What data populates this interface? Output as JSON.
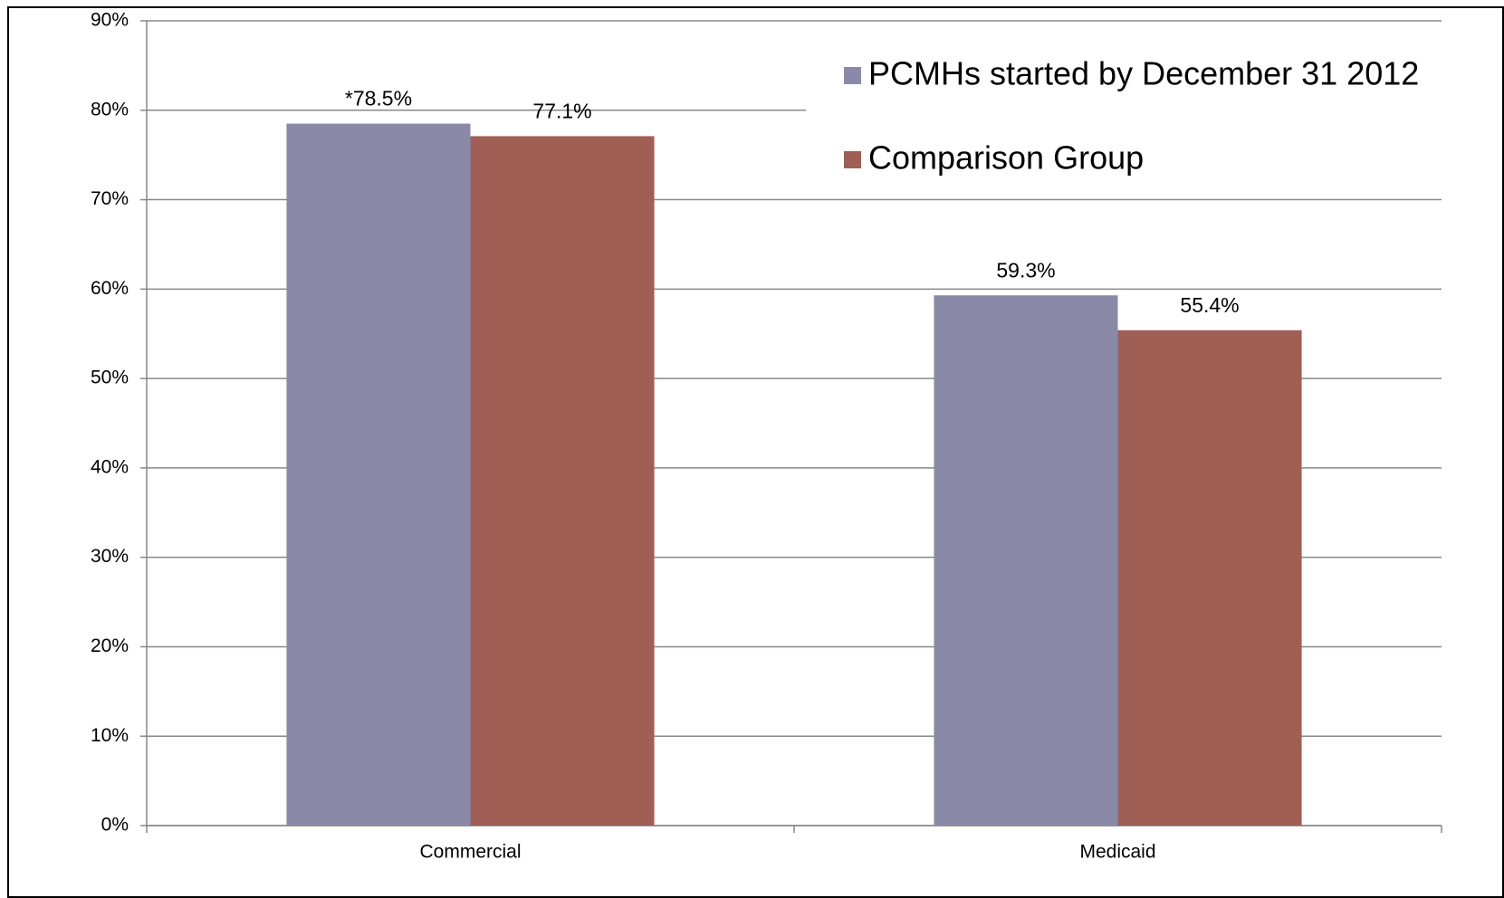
{
  "chart_data": {
    "type": "bar",
    "categories": [
      "Commercial",
      "Medicaid"
    ],
    "series": [
      {
        "name": "PCMHs started by December 31 2012",
        "color": "#8a8aa8",
        "values": [
          78.5,
          59.3
        ],
        "value_labels": [
          "*78.5%",
          "59.3%"
        ]
      },
      {
        "name": "Comparison Group",
        "color": "#a05f55",
        "values": [
          77.1,
          55.4
        ],
        "value_labels": [
          "77.1%",
          "55.4%"
        ]
      }
    ],
    "ylim": [
      0,
      90
    ],
    "yticks": [
      {
        "value": 0,
        "label": "0%"
      },
      {
        "value": 10,
        "label": "10%"
      },
      {
        "value": 20,
        "label": "20%"
      },
      {
        "value": 30,
        "label": "30%"
      },
      {
        "value": 40,
        "label": "40%"
      },
      {
        "value": 50,
        "label": "50%"
      },
      {
        "value": 60,
        "label": "60%"
      },
      {
        "value": 70,
        "label": "70%"
      },
      {
        "value": 80,
        "label": "80%"
      },
      {
        "value": 90,
        "label": "90%"
      }
    ],
    "grid": true,
    "legend": "top-right"
  }
}
